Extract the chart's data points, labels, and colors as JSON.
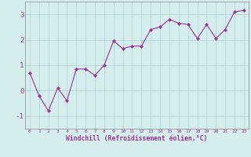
{
  "x": [
    0,
    1,
    2,
    3,
    4,
    5,
    6,
    7,
    8,
    9,
    10,
    11,
    12,
    13,
    14,
    15,
    16,
    17,
    18,
    19,
    20,
    21,
    22,
    23
  ],
  "y": [
    0.7,
    -0.2,
    -0.8,
    0.1,
    -0.4,
    0.85,
    0.85,
    0.6,
    1.0,
    1.95,
    1.65,
    1.75,
    1.75,
    2.4,
    2.5,
    2.8,
    2.65,
    2.6,
    2.05,
    2.6,
    2.05,
    2.4,
    3.1,
    3.15
  ],
  "line_color": "#993399",
  "marker": "D",
  "marker_size": 2.0,
  "bg_color": "#d5eeed",
  "grid_color": "#b0d8d8",
  "xlabel": "Windchill (Refroidissement éolien,°C)",
  "xlabel_color": "#993399",
  "tick_color": "#993399",
  "spine_color": "#888888",
  "ylim": [
    -1.5,
    3.5
  ],
  "xlim": [
    -0.5,
    23.5
  ],
  "yticks": [
    -1,
    0,
    1,
    2,
    3
  ],
  "xticks": [
    0,
    1,
    2,
    3,
    4,
    5,
    6,
    7,
    8,
    9,
    10,
    11,
    12,
    13,
    14,
    15,
    16,
    17,
    18,
    19,
    20,
    21,
    22,
    23
  ]
}
